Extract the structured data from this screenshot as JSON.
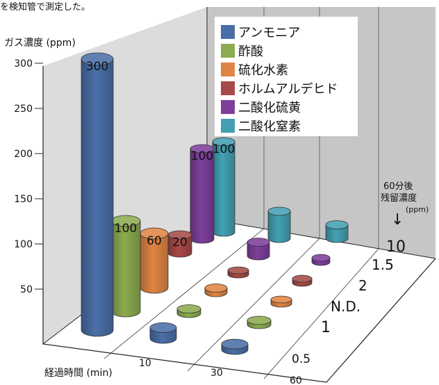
{
  "header_fragment": "を検知管で測定した。",
  "chart_data": {
    "type": "bar",
    "subtype": "3d-cylinder",
    "ylabel": "ガス濃度 (ppm)",
    "xlabel": "経過時間 (min)",
    "yticks": [
      50,
      100,
      150,
      200,
      250,
      300
    ],
    "ylim": [
      0,
      300
    ],
    "x": [
      "10",
      "30",
      "60"
    ],
    "series": [
      {
        "name": "アンモニア",
        "color": "#4a6fa8",
        "values": [
          300,
          12,
          6
        ],
        "labels": [
          "300",
          "",
          ""
        ]
      },
      {
        "name": "酢酸",
        "color": "#8cab4f",
        "values": [
          100,
          5,
          4
        ],
        "labels": [
          "100",
          "",
          ""
        ]
      },
      {
        "name": "硫化水素",
        "color": "#e08443",
        "values": [
          60,
          5,
          3
        ],
        "labels": [
          "60",
          "",
          ""
        ]
      },
      {
        "name": "ホルムアルデヒド",
        "color": "#a84a47",
        "values": [
          20,
          4,
          3
        ],
        "labels": [
          "20",
          "",
          ""
        ]
      },
      {
        "name": "二酸化硫黄",
        "color": "#7d3f9b",
        "values": [
          100,
          15,
          4
        ],
        "labels": [
          "100",
          "",
          ""
        ]
      },
      {
        "name": "二酸化窒素",
        "color": "#43a0b3",
        "values": [
          100,
          30,
          15
        ],
        "labels": [
          "100",
          "",
          ""
        ]
      }
    ],
    "residual": {
      "title_line1": "60分後",
      "title_line2": "残留濃度",
      "unit": "(ppm)",
      "arrow": "↓",
      "values": [
        "0.5",
        "1",
        "N.D.",
        "2",
        "1.5",
        "10"
      ]
    },
    "legend_position": "top-right inside"
  }
}
